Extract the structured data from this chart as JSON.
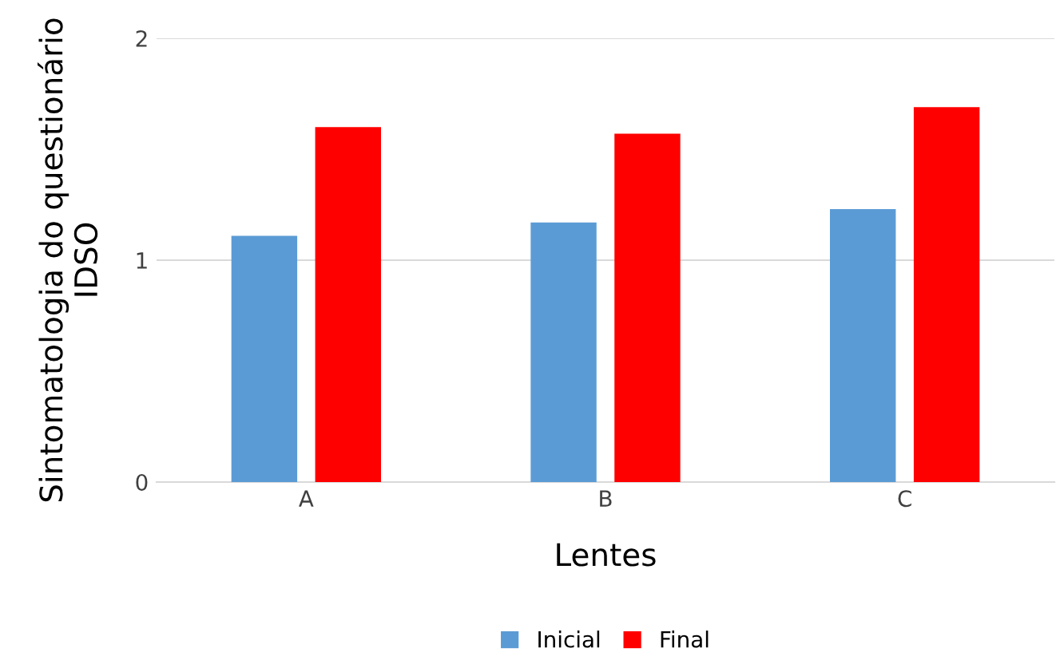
{
  "chart_data": {
    "type": "bar",
    "xlabel": "Lentes",
    "ylabel": "Sintomatologia do questionário\nIDSO",
    "categories": [
      "A",
      "B",
      "C"
    ],
    "series": [
      {
        "name": "Inicial",
        "color": "#5b9bd5",
        "values": [
          1.11,
          1.17,
          1.23
        ]
      },
      {
        "name": "Final",
        "color": "#ff0000",
        "values": [
          1.6,
          1.57,
          1.69
        ]
      }
    ],
    "ylim": [
      0,
      2
    ],
    "yticks": [
      0,
      1,
      2
    ],
    "grid": "y",
    "legend": "bottom"
  }
}
